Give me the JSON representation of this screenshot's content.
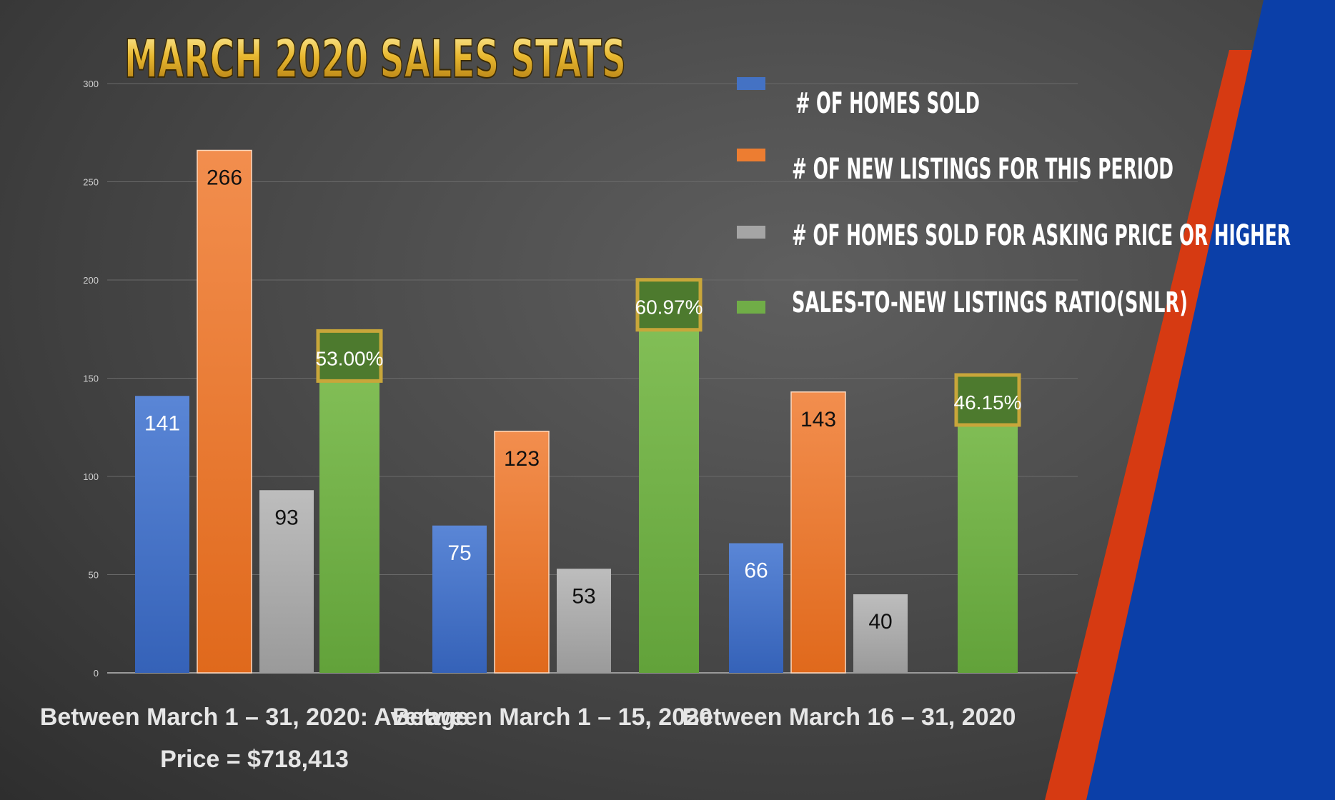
{
  "title": "MARCH 2020 SALES STATS",
  "colors": {
    "homes_sold": "#4472c4",
    "new_listings": "#ed7d31",
    "sold_asking": "#a5a5a5",
    "snlr": "#70ad47",
    "stripe_red": "#d63a12",
    "stripe_blue": "#0b3fa8",
    "title_gold": "#e8b830"
  },
  "chart_data": {
    "type": "bar",
    "title": "MARCH 2020 SALES STATS",
    "ylim": [
      0,
      300
    ],
    "yticks": [
      "0",
      "50",
      "100",
      "150",
      "200",
      "250",
      "300"
    ],
    "grid": true,
    "legend_position": "top-right",
    "categories": [
      [
        "Between March 1 – 31, 2020: Average",
        "Price = $718,413"
      ],
      [
        "Between March 1 – 15, 2020"
      ],
      [
        "Between March 16 – 31, 2020"
      ]
    ],
    "series": [
      {
        "name": "# OF HOMES SOLD",
        "color_key": "homes_sold",
        "values": [
          141,
          75,
          66
        ],
        "labels": [
          "141",
          "75",
          "66"
        ]
      },
      {
        "name": "# OF NEW LISTINGS FOR THIS PERIOD",
        "color_key": "new_listings",
        "values": [
          266,
          123,
          143
        ],
        "labels": [
          "266",
          "123",
          "143"
        ]
      },
      {
        "name": "# OF HOMES SOLD FOR ASKING PRICE OR HIGHER",
        "color_key": "sold_asking",
        "values": [
          93,
          53,
          40
        ],
        "labels": [
          "93",
          "53",
          "40"
        ]
      },
      {
        "name": "SALES-TO-NEW LISTINGS RATIO(SNLR)",
        "color_key": "snlr",
        "values": [
          53.0,
          60.97,
          46.15
        ],
        "labels": [
          "53.00%",
          "60.97%",
          "46.15%"
        ]
      }
    ]
  }
}
